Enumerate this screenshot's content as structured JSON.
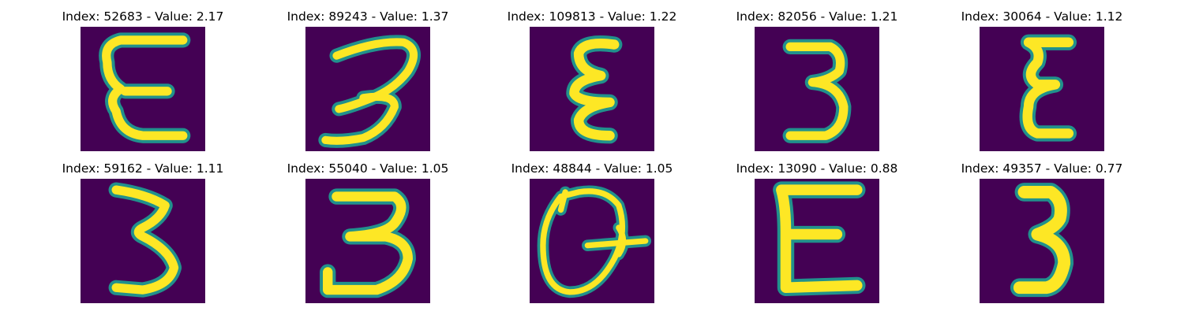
{
  "colors": {
    "background": "#440154",
    "mid": "#21918c",
    "mid_light": "#5ec962",
    "foreground": "#fde725"
  },
  "panels": [
    {
      "title": "Index: 52683 - Value: 2.17",
      "index": 52683,
      "value": 2.17,
      "glyph": "E-curly"
    },
    {
      "title": "Index: 89243 - Value: 1.37",
      "index": 89243,
      "value": 1.37,
      "glyph": "3-slanted"
    },
    {
      "title": "Index: 109813 - Value: 1.22",
      "index": 109813,
      "value": 1.22,
      "glyph": "epsilon"
    },
    {
      "title": "Index: 82056 - Value: 1.21",
      "index": 82056,
      "value": 1.21,
      "glyph": "3"
    },
    {
      "title": "Index: 30064 - Value: 1.12",
      "index": 30064,
      "value": 1.12,
      "glyph": "epsilon-narrow"
    },
    {
      "title": "Index: 59162 - Value: 1.11",
      "index": 59162,
      "value": 1.11,
      "glyph": "3-z"
    },
    {
      "title": "Index: 55040 - Value: 1.05",
      "index": 55040,
      "value": 1.05,
      "glyph": "3-flat-top"
    },
    {
      "title": "Index: 48844 - Value: 1.05",
      "index": 48844,
      "value": 1.05,
      "glyph": "Q"
    },
    {
      "title": "Index: 13090 - Value: 0.88",
      "index": 13090,
      "value": 0.88,
      "glyph": "E"
    },
    {
      "title": "Index: 49357 - Value: 0.77",
      "index": 49357,
      "value": 0.77,
      "glyph": "3-thick"
    }
  ]
}
